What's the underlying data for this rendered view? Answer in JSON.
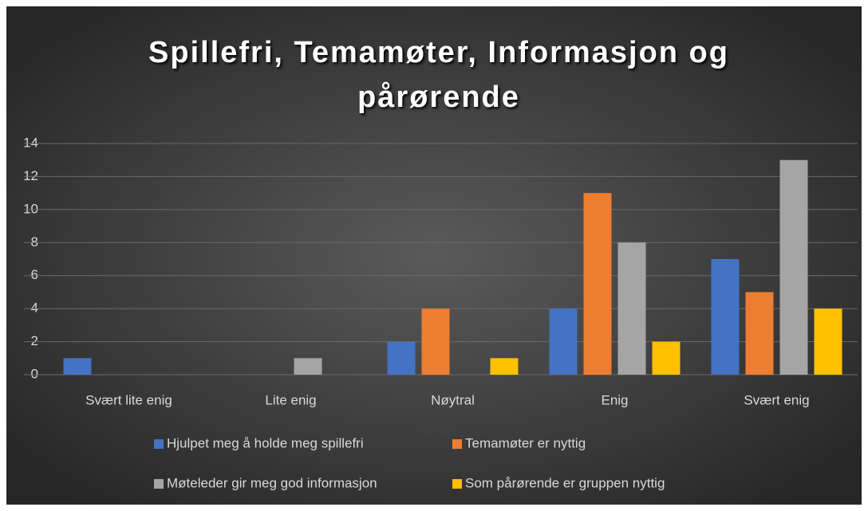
{
  "chart_data": {
    "type": "bar",
    "title": "Spillefri, Temamøter, Informasjon og pårørende",
    "categories": [
      "Svært lite enig",
      "Lite enig",
      "Nøytral",
      "Enig",
      "Svært enig"
    ],
    "series": [
      {
        "name": "Hjulpet meg å holde meg spillefri",
        "color": "#4472c4",
        "values": [
          1,
          0,
          2,
          4,
          7
        ]
      },
      {
        "name": "Temamøter er nyttig",
        "color": "#ed7d31",
        "values": [
          0,
          0,
          4,
          11,
          5
        ]
      },
      {
        "name": "Møteleder gir meg god informasjon",
        "color": "#a5a5a5",
        "values": [
          0,
          1,
          0,
          8,
          13
        ]
      },
      {
        "name": "Som pårørende er gruppen nyttig",
        "color": "#ffc000",
        "values": [
          0,
          0,
          1,
          2,
          4
        ]
      }
    ],
    "ylim": [
      0,
      14
    ],
    "yticks": [
      0,
      2,
      4,
      6,
      8,
      10,
      12,
      14
    ],
    "grid": true,
    "legend": "bottom"
  }
}
